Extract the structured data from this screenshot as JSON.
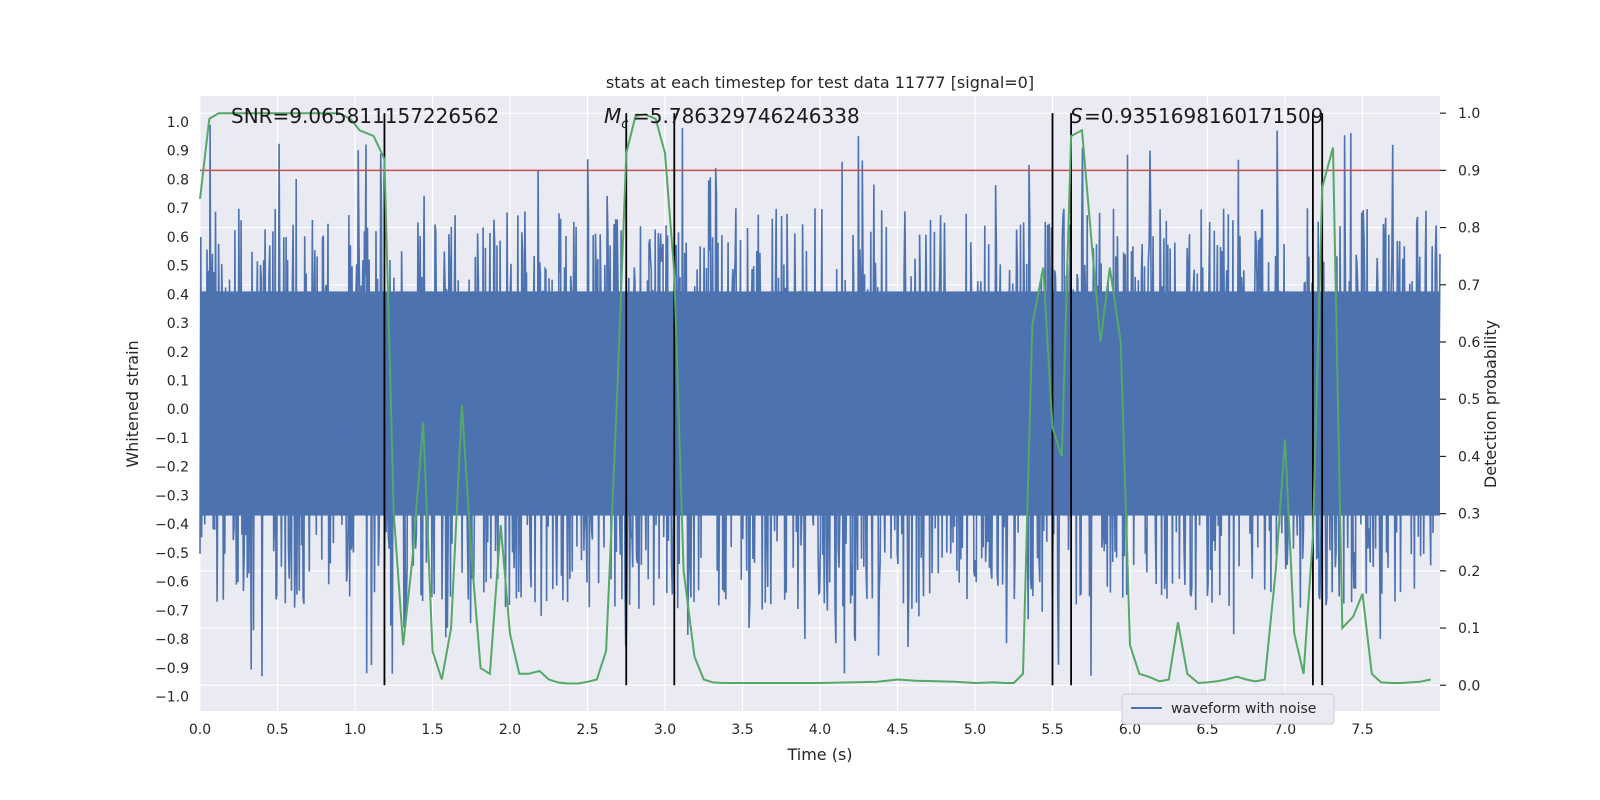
{
  "chart_data": {
    "type": "line",
    "title": "stats at each timestep for test data 11777 [signal=0]",
    "xlabel": "Time (s)",
    "ylabel": "Whitened strain",
    "y2label": "Detection probability",
    "xlim": [
      0,
      8
    ],
    "ylim": [
      -1.05,
      1.09
    ],
    "y2lim": [
      -0.045,
      1.03
    ],
    "xticks": [
      0,
      0.5,
      1,
      1.5,
      2,
      2.5,
      3,
      3.5,
      4,
      4.5,
      5,
      5.5,
      6,
      6.5,
      7,
      7.5
    ],
    "yticks": [
      -1,
      -0.9,
      -0.8,
      -0.7,
      -0.6,
      -0.5,
      -0.4,
      -0.3,
      -0.2,
      -0.1,
      0,
      0.1,
      0.2,
      0.3,
      0.4,
      0.5,
      0.6,
      0.7,
      0.8,
      0.9,
      1
    ],
    "y2ticks": [
      0,
      0.1,
      0.2,
      0.3,
      0.4,
      0.5,
      0.6,
      0.7,
      0.8,
      0.9,
      1
    ],
    "grid": true,
    "threshold": 0.9,
    "vlines": [
      1.19,
      2.75,
      3.06,
      5.5,
      5.62,
      7.18,
      7.24
    ],
    "legend": {
      "location": "lower-right",
      "entries": [
        "waveform with noise"
      ]
    },
    "annotations": [
      {
        "label": "SNR",
        "text": "SNR=9.065811157226562",
        "x": 0.19
      },
      {
        "label": "Mc",
        "text": "=5.786329746246338",
        "x": 2.6
      },
      {
        "label": "S",
        "text": "=0.9351698160171509",
        "x": 5.6
      }
    ],
    "series": [
      {
        "name": "waveform with noise",
        "color": "#4c72b0",
        "kind": "noise",
        "core_band": [
          -0.37,
          0.41
        ],
        "spike_range": [
          -0.93,
          0.99
        ],
        "samples": 1600
      },
      {
        "name": "detection probability",
        "color": "#55a868",
        "axis": "right",
        "x": [
          0,
          0.06,
          0.12,
          0.2,
          0.3,
          0.4,
          0.5,
          0.6,
          0.7,
          0.8,
          0.9,
          0.97,
          1.03,
          1.12,
          1.19,
          1.25,
          1.31,
          1.37,
          1.44,
          1.5,
          1.56,
          1.62,
          1.69,
          1.75,
          1.81,
          1.87,
          1.94,
          2.0,
          2.06,
          2.12,
          2.19,
          2.25,
          2.31,
          2.37,
          2.44,
          2.5,
          2.56,
          2.62,
          2.69,
          2.75,
          2.81,
          2.87,
          2.94,
          3.0,
          3.06,
          3.12,
          3.19,
          3.25,
          3.31,
          3.37,
          3.44,
          3.5,
          3.6,
          3.8,
          4.0,
          4.2,
          4.37,
          4.5,
          4.62,
          4.75,
          4.87,
          5.0,
          5.12,
          5.19,
          5.25,
          5.31,
          5.37,
          5.44,
          5.5,
          5.56,
          5.62,
          5.69,
          5.75,
          5.81,
          5.87,
          5.94,
          6.0,
          6.06,
          6.12,
          6.19,
          6.25,
          6.31,
          6.37,
          6.44,
          6.5,
          6.56,
          6.62,
          6.69,
          6.75,
          6.81,
          6.87,
          6.94,
          7.0,
          7.06,
          7.12,
          7.18,
          7.24,
          7.31,
          7.37,
          7.44,
          7.5,
          7.56,
          7.62,
          7.69,
          7.75,
          7.81,
          7.87,
          7.94
        ],
        "values": [
          0.85,
          0.99,
          1.0,
          1.0,
          1.0,
          1.0,
          1.0,
          1.0,
          1.0,
          1.0,
          1.0,
          0.99,
          0.97,
          0.96,
          0.92,
          0.3,
          0.07,
          0.22,
          0.46,
          0.06,
          0.01,
          0.1,
          0.49,
          0.23,
          0.03,
          0.02,
          0.28,
          0.09,
          0.02,
          0.02,
          0.025,
          0.01,
          0.005,
          0.003,
          0.003,
          0.006,
          0.01,
          0.06,
          0.5,
          0.93,
          0.995,
          0.998,
          0.99,
          0.93,
          0.72,
          0.2,
          0.05,
          0.01,
          0.005,
          0.004,
          0.004,
          0.004,
          0.004,
          0.004,
          0.004,
          0.005,
          0.006,
          0.01,
          0.008,
          0.007,
          0.006,
          0.004,
          0.005,
          0.004,
          0.004,
          0.02,
          0.63,
          0.73,
          0.45,
          0.4,
          0.96,
          0.97,
          0.78,
          0.6,
          0.73,
          0.6,
          0.07,
          0.02,
          0.015,
          0.007,
          0.01,
          0.11,
          0.02,
          0.004,
          0.005,
          0.007,
          0.01,
          0.015,
          0.01,
          0.007,
          0.01,
          0.2,
          0.43,
          0.09,
          0.02,
          0.26,
          0.87,
          0.94,
          0.1,
          0.12,
          0.16,
          0.02,
          0.005,
          0.004,
          0.004,
          0.005,
          0.006,
          0.01
        ]
      }
    ]
  }
}
